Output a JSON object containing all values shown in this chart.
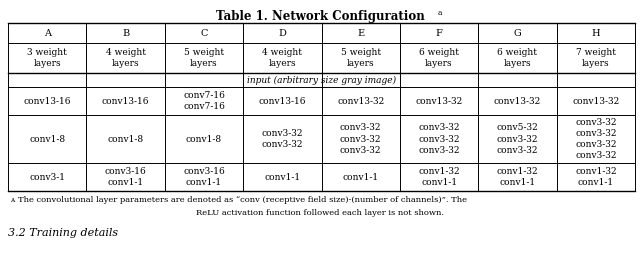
{
  "title": "Table 1. Network Configuration",
  "title_superscript": "a",
  "footnote_line1": "ᴀThe convolutional layer parameters are denoted as “conv (receptive field size)-(number of channels)”. The",
  "footnote_line2": "ReLU activation function followed each layer is not shown.",
  "columns": [
    "A",
    "B",
    "C",
    "D",
    "E",
    "F",
    "G",
    "H"
  ],
  "col_subtitles": [
    "3 weight\nlayers",
    "4 weight\nlayers",
    "5 weight\nlayers",
    "4 weight\nlayers",
    "5 weight\nlayers",
    "6 weight\nlayers",
    "6 weight\nlayers",
    "7 weight\nlayers"
  ],
  "input_row": "input (arbitrary size gray image)",
  "rows": [
    [
      "conv13-16",
      "conv13-16",
      "conv7-16\nconv7-16",
      "conv13-16",
      "conv13-32",
      "conv13-32",
      "conv13-32",
      "conv13-32"
    ],
    [
      "conv1-8",
      "conv1-8",
      "conv1-8",
      "conv3-32\nconv3-32",
      "conv3-32\nconv3-32\nconv3-32",
      "conv3-32\nconv3-32\nconv3-32",
      "conv5-32\nconv3-32\nconv3-32",
      "conv3-32\nconv3-32\nconv3-32\nconv3-32"
    ],
    [
      "conv3-1",
      "conv3-16\nconv1-1",
      "conv3-16\nconv1-1",
      "conv1-1",
      "conv1-1",
      "conv1-32\nconv1-1",
      "conv1-32\nconv1-1",
      "conv1-32\nconv1-1"
    ]
  ],
  "background_color": "#ffffff",
  "line_color": "#000000",
  "text_color": "#000000",
  "font_size": 7.0,
  "title_font_size": 8.5
}
